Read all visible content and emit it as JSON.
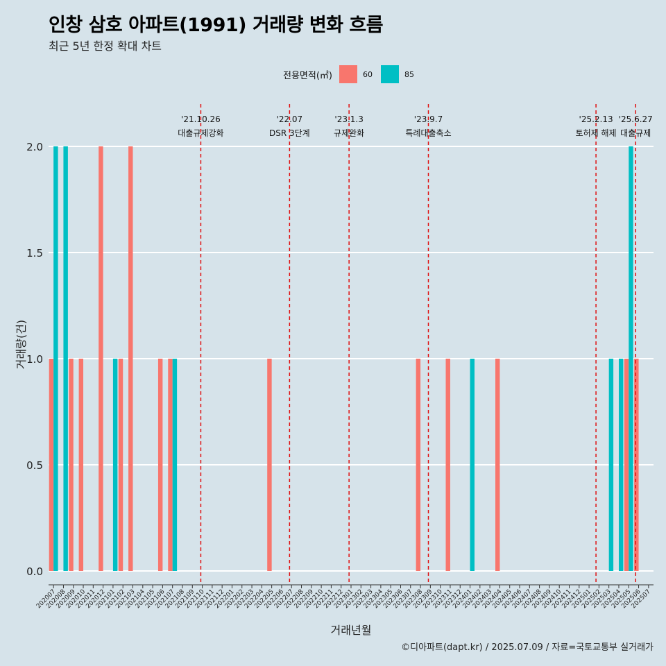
{
  "title": "인창 삼호 아파트(1991) 거래량 변화 흐름",
  "subtitle": "최근 5년 한정 확대 차트",
  "caption": "©디아파트(dapt.kr) / 2025.07.09 / 자료=국토교통부 실거래가",
  "legend": {
    "title": "전용면적(㎡)",
    "items": [
      {
        "label": "60",
        "color": "#F8766D"
      },
      {
        "label": "85",
        "color": "#00BFC4"
      }
    ]
  },
  "chart_data": {
    "type": "bar",
    "xlabel": "거래년월",
    "ylabel": "거래량(건)",
    "ylim": [
      0,
      2
    ],
    "yticks": [
      "0.0",
      "0.5",
      "1.0",
      "1.5",
      "2.0"
    ],
    "grid": true,
    "legend_position": "top",
    "categories": [
      "202007",
      "202008",
      "202009",
      "202010",
      "202011",
      "202012",
      "202101",
      "202102",
      "202103",
      "202104",
      "202105",
      "202106",
      "202107",
      "202108",
      "202109",
      "202110",
      "202111",
      "202112",
      "202201",
      "202202",
      "202203",
      "202204",
      "202205",
      "202206",
      "202207",
      "202208",
      "202209",
      "202210",
      "202211",
      "202212",
      "202301",
      "202302",
      "202303",
      "202304",
      "202305",
      "202306",
      "202307",
      "202308",
      "202309",
      "202310",
      "202311",
      "202312",
      "202401",
      "202402",
      "202403",
      "202404",
      "202405",
      "202406",
      "202407",
      "202408",
      "202409",
      "202410",
      "202411",
      "202412",
      "202501",
      "202502",
      "202503",
      "202504",
      "202505",
      "202506",
      "202507"
    ],
    "series": [
      {
        "name": "60",
        "color": "#F8766D",
        "values": [
          1,
          0,
          1,
          1,
          0,
          2,
          0,
          1,
          2,
          0,
          0,
          1,
          1,
          0,
          0,
          0,
          0,
          0,
          0,
          0,
          0,
          0,
          1,
          0,
          0,
          0,
          0,
          0,
          0,
          0,
          0,
          0,
          0,
          0,
          0,
          0,
          0,
          1,
          0,
          0,
          1,
          0,
          0,
          0,
          0,
          1,
          0,
          0,
          0,
          0,
          0,
          0,
          0,
          0,
          0,
          0,
          0,
          0,
          1,
          1,
          0
        ]
      },
      {
        "name": "85",
        "color": "#00BFC4",
        "values": [
          2,
          2,
          0,
          0,
          0,
          0,
          1,
          0,
          0,
          0,
          0,
          0,
          1,
          0,
          0,
          0,
          0,
          0,
          0,
          0,
          0,
          0,
          0,
          0,
          0,
          0,
          0,
          0,
          0,
          0,
          0,
          0,
          0,
          0,
          0,
          0,
          0,
          0,
          0,
          0,
          0,
          0,
          1,
          0,
          0,
          0,
          0,
          0,
          0,
          0,
          0,
          0,
          0,
          0,
          0,
          0,
          1,
          1,
          2,
          0,
          0
        ]
      }
    ],
    "events": [
      {
        "date": "'21.10.26",
        "label": "대출규제강화",
        "at": 15.35
      },
      {
        "date": "'22.07",
        "label": "DSR 3단계",
        "at": 24.3
      },
      {
        "date": "'23.1.3",
        "label": "규제완화",
        "at": 30.3
      },
      {
        "date": "'23.9.7",
        "label": "특례대출축소",
        "at": 38.3
      },
      {
        "date": "'25.2.13",
        "label": "토허제 해제",
        "at": 55.2
      },
      {
        "date": "'25.6.27",
        "label": "대출규제",
        "at": 59.2
      }
    ]
  }
}
